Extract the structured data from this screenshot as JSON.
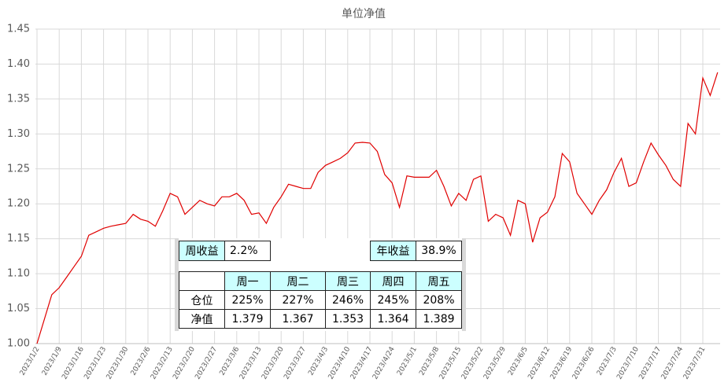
{
  "chart_data": {
    "type": "line",
    "title": "单位净值",
    "categories": [
      "2023/1/2",
      null,
      null,
      "2023/1/9",
      null,
      null,
      "2023/1/16",
      null,
      null,
      "2023/1/23",
      null,
      null,
      "2023/1/30",
      null,
      null,
      "2023/2/6",
      null,
      null,
      "2023/2/13",
      null,
      null,
      "2023/2/20",
      null,
      null,
      "2023/2/27",
      null,
      null,
      "2023/3/6",
      null,
      null,
      "2023/3/13",
      null,
      null,
      "2023/3/20",
      null,
      null,
      "2023/3/27",
      null,
      null,
      "2023/4/3",
      null,
      null,
      "2023/4/10",
      null,
      null,
      "2023/4/17",
      null,
      null,
      "2023/4/24",
      null,
      null,
      "2023/5/1",
      null,
      null,
      "2023/5/8",
      null,
      null,
      "2023/5/15",
      null,
      null,
      "2023/5/22",
      null,
      null,
      "2023/5/29",
      null,
      null,
      "2023/6/5",
      null,
      null,
      "2023/6/12",
      null,
      null,
      "2023/6/19",
      null,
      null,
      "2023/6/26",
      null,
      null,
      "2023/7/3",
      null,
      null,
      "2023/7/10",
      null,
      null,
      "2023/7/17",
      null,
      null,
      "2023/7/24",
      null,
      null,
      "2023/7/31",
      null,
      null
    ],
    "values": [
      1.0,
      1.035,
      1.07,
      1.08,
      1.095,
      1.11,
      1.125,
      1.155,
      1.16,
      1.165,
      1.168,
      1.17,
      1.172,
      1.185,
      1.178,
      1.175,
      1.168,
      1.19,
      1.215,
      1.21,
      1.185,
      1.195,
      1.205,
      1.2,
      1.197,
      1.21,
      1.21,
      1.215,
      1.205,
      1.185,
      1.187,
      1.172,
      1.195,
      1.21,
      1.228,
      1.225,
      1.222,
      1.222,
      1.245,
      1.255,
      1.26,
      1.265,
      1.273,
      1.287,
      1.288,
      1.287,
      1.275,
      1.242,
      1.23,
      1.195,
      1.24,
      1.238,
      1.238,
      1.238,
      1.248,
      1.225,
      1.197,
      1.215,
      1.205,
      1.235,
      1.24,
      1.175,
      1.185,
      1.18,
      1.155,
      1.205,
      1.2,
      1.145,
      1.18,
      1.188,
      1.21,
      1.272,
      1.26,
      1.215,
      1.2,
      1.185,
      1.205,
      1.22,
      1.245,
      1.265,
      1.225,
      1.23,
      1.26,
      1.287,
      1.27,
      1.255,
      1.235,
      1.225,
      1.315,
      1.3,
      1.38,
      1.355,
      1.388
    ],
    "color": "#e00000",
    "ylim": [
      1.0,
      1.45
    ],
    "yticks": [
      {
        "value": 1.0,
        "label": "1.00"
      },
      {
        "value": 1.05,
        "label": "1.05"
      },
      {
        "value": 1.1,
        "label": "1.10"
      },
      {
        "value": 1.15,
        "label": "1.15"
      },
      {
        "value": 1.2,
        "label": "1.20"
      },
      {
        "value": 1.25,
        "label": "1.25"
      },
      {
        "value": 1.3,
        "label": "1.30"
      },
      {
        "value": 1.35,
        "label": "1.35"
      },
      {
        "value": 1.4,
        "label": "1.40"
      },
      {
        "value": 1.45,
        "label": "1.45"
      }
    ],
    "grid": true
  },
  "table": {
    "rows": [
      [
        "周收益",
        "2.2%",
        "",
        "",
        "年收益",
        "38.9%"
      ],
      [
        "",
        "",
        "",
        "",
        "",
        ""
      ],
      [
        "",
        "周一",
        "周二",
        "周三",
        "周四",
        "周五"
      ],
      [
        "仓位",
        "225%",
        "227%",
        "246%",
        "245%",
        "208%"
      ],
      [
        "净值",
        "1.379",
        "1.367",
        "1.353",
        "1.364",
        "1.389"
      ]
    ]
  }
}
